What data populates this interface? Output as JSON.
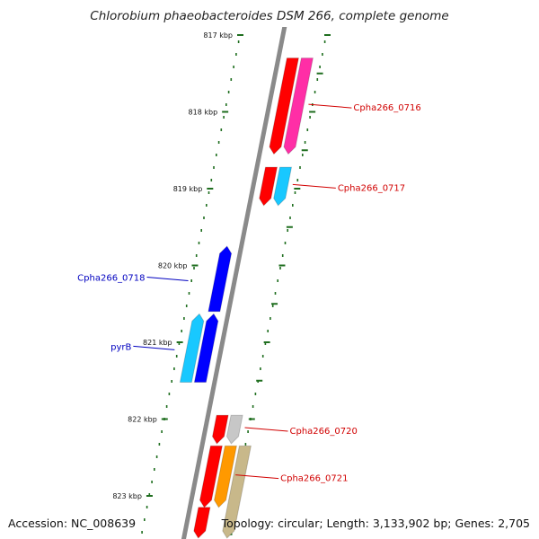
{
  "title": "Chlorobium phaeobacteroides DSM 266, complete genome",
  "footer": {
    "accession_text": "Accession: NC_008639",
    "topology_text": "Topology: circular;",
    "length_text": "Length: 3,133,902 bp;",
    "genes_text": "Genes: 2,705"
  },
  "colors": {
    "backbone": "#8a8a8a",
    "ruler_tick": "#1f6e1f",
    "label_right": "#d10000",
    "label_left": "#0000c0"
  },
  "ruler": {
    "unit": "kbp",
    "labels": [
      "817 kbp",
      "818 kbp",
      "819 kbp",
      "820 kbp",
      "821 kbp",
      "822 kbp",
      "823 kbp"
    ]
  },
  "features": [
    {
      "name": "Cpha266_0716",
      "strand": "reverse",
      "lane": 1,
      "start_kbp": 817.3,
      "end_kbp": 818.55,
      "color": "#ff0000",
      "labeled": true
    },
    {
      "name": "",
      "strand": "reverse",
      "lane": 2,
      "start_kbp": 817.3,
      "end_kbp": 818.55,
      "color": "#ff2ea6",
      "labeled": false
    },
    {
      "name": "Cpha266_0717",
      "strand": "reverse",
      "lane": 1,
      "start_kbp": 818.72,
      "end_kbp": 819.22,
      "color": "#ff0000",
      "labeled": true
    },
    {
      "name": "",
      "strand": "reverse",
      "lane": 2,
      "start_kbp": 818.72,
      "end_kbp": 819.22,
      "color": "#18c8ff",
      "labeled": false
    },
    {
      "name": "Cpha266_0718",
      "strand": "forward",
      "lane": -1,
      "start_kbp": 820.6,
      "end_kbp": 819.75,
      "color": "#0000ff",
      "labeled": true
    },
    {
      "name": "pyrB",
      "strand": "forward",
      "lane": -1,
      "start_kbp": 821.52,
      "end_kbp": 820.63,
      "color": "#0000ff",
      "labeled": true
    },
    {
      "name": "",
      "strand": "forward",
      "lane": -2,
      "start_kbp": 821.52,
      "end_kbp": 820.63,
      "color": "#18c8ff",
      "labeled": false
    },
    {
      "name": "Cpha266_0720",
      "strand": "reverse",
      "lane": 1,
      "start_kbp": 821.95,
      "end_kbp": 822.32,
      "color": "#ff0000",
      "labeled": true
    },
    {
      "name": "",
      "strand": "reverse",
      "lane": 2,
      "start_kbp": 821.95,
      "end_kbp": 822.32,
      "color": "#c7c7c7",
      "labeled": false
    },
    {
      "name": "Cpha266_0721",
      "strand": "reverse",
      "lane": 1,
      "start_kbp": 822.35,
      "end_kbp": 823.15,
      "color": "#ff0000",
      "labeled": true
    },
    {
      "name": "",
      "strand": "reverse",
      "lane": 2,
      "start_kbp": 822.35,
      "end_kbp": 823.15,
      "color": "#ff9900",
      "labeled": false
    },
    {
      "name": "",
      "strand": "reverse",
      "lane": 3,
      "start_kbp": 822.35,
      "end_kbp": 823.55,
      "color": "#c8b88a",
      "labeled": false
    },
    {
      "name": "",
      "strand": "reverse",
      "lane": 1,
      "start_kbp": 823.15,
      "end_kbp": 823.55,
      "color": "#ff0000",
      "labeled": false
    }
  ]
}
